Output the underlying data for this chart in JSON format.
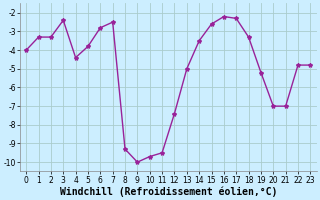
{
  "x": [
    0,
    1,
    2,
    3,
    4,
    5,
    6,
    7,
    8,
    9,
    10,
    11,
    12,
    13,
    14,
    15,
    16,
    17,
    18,
    19,
    20,
    21,
    22,
    23
  ],
  "y": [
    -4.0,
    -3.3,
    -3.3,
    -2.4,
    -4.4,
    -3.8,
    -2.8,
    -2.5,
    -9.3,
    -10.0,
    -9.7,
    -9.5,
    -7.4,
    -5.0,
    -3.5,
    -2.6,
    -2.2,
    -2.3,
    -3.3,
    -5.2,
    -7.0,
    -7.0,
    -4.8,
    -4.8
  ],
  "line_color": "#992299",
  "marker": "*",
  "marker_size": 3,
  "background_color": "#cceeff",
  "grid_color": "#aacccc",
  "xlabel": "Windchill (Refroidissement éolien,°C)",
  "xlabel_fontsize": 7,
  "ylim": [
    -10.5,
    -1.5
  ],
  "xlim": [
    -0.5,
    23.5
  ],
  "yticks": [
    -10,
    -9,
    -8,
    -7,
    -6,
    -5,
    -4,
    -3,
    -2
  ],
  "xticks": [
    0,
    1,
    2,
    3,
    4,
    5,
    6,
    7,
    8,
    9,
    10,
    11,
    12,
    13,
    14,
    15,
    16,
    17,
    18,
    19,
    20,
    21,
    22,
    23
  ],
  "tick_fontsize": 5.5,
  "line_width": 1.0
}
